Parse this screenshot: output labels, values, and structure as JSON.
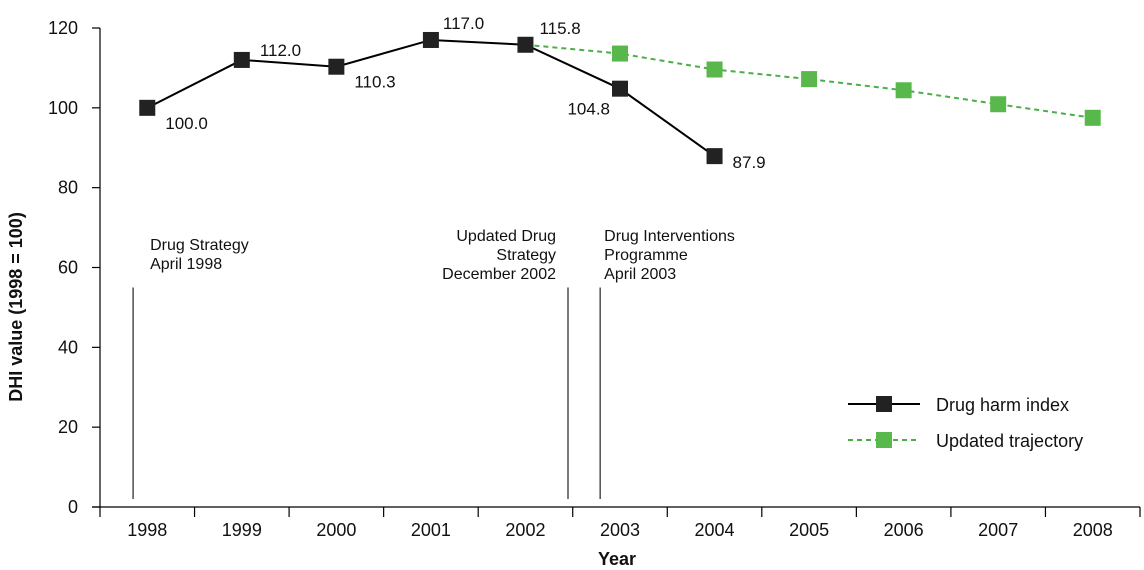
{
  "chart_data": {
    "type": "line",
    "xlabel": "Year",
    "ylabel": "DHI value (1998 = 100)",
    "ylim": [
      0,
      120
    ],
    "yticks": [
      0,
      20,
      40,
      60,
      80,
      100,
      120
    ],
    "categories": [
      "1998",
      "1999",
      "2000",
      "2001",
      "2002",
      "2003",
      "2004",
      "2005",
      "2006",
      "2007",
      "2008"
    ],
    "grid": false,
    "legend_position": "bottom-right",
    "series": [
      {
        "name": "Drug harm index",
        "color": "#000000",
        "marker_color": "#222222",
        "line": "solid",
        "x": [
          "1998",
          "1999",
          "2000",
          "2001",
          "2002",
          "2003",
          "2004"
        ],
        "values": [
          100.0,
          112.0,
          110.3,
          117.0,
          115.8,
          104.8,
          87.9
        ],
        "labels": [
          "100.0",
          "112.0",
          "110.3",
          "117.0",
          "115.8",
          "104.8",
          "87.9"
        ]
      },
      {
        "name": "Updated trajectory",
        "color": "#4dae49",
        "marker_color": "#59b84b",
        "line": "dashed",
        "x": [
          "2002",
          "2003",
          "2004",
          "2005",
          "2006",
          "2007",
          "2008"
        ],
        "values": [
          115.8,
          113.6,
          109.6,
          107.2,
          104.4,
          100.9,
          97.5
        ]
      }
    ],
    "annotations": [
      {
        "position": 1997.85,
        "lines": [
          "Drug Strategy",
          "April 1998"
        ],
        "align": "left"
      },
      {
        "position": 2002.45,
        "lines": [
          "Updated Drug",
          "Strategy",
          "December 2002"
        ],
        "align": "right"
      },
      {
        "position": 2002.79,
        "lines": [
          "Drug Interventions",
          "Programme",
          "April 2003"
        ],
        "align": "left"
      }
    ]
  }
}
